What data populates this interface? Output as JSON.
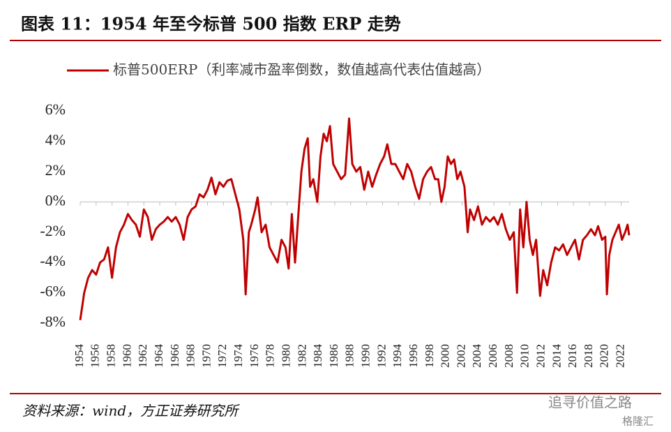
{
  "chart_data": {
    "type": "line",
    "title": "图表 11：1954 年至今标普 500 指数 ERP 走势",
    "source": "资料来源：wind，方正证券研究所",
    "watermark": "追寻价值之路",
    "watermark2": "格隆汇",
    "xlim": [
      1954,
      2023
    ],
    "xticks": [
      1954,
      1956,
      1958,
      1960,
      1962,
      1964,
      1966,
      1968,
      1970,
      1972,
      1974,
      1976,
      1978,
      1980,
      1982,
      1984,
      1986,
      1988,
      1990,
      1992,
      1994,
      1996,
      1998,
      2000,
      2002,
      2004,
      2006,
      2008,
      2010,
      2012,
      2014,
      2016,
      2018,
      2020,
      2022
    ],
    "ylim": [
      -8,
      6
    ],
    "yticks": [
      {
        "value": -8,
        "label": "-8%"
      },
      {
        "value": -6,
        "label": "-6%"
      },
      {
        "value": -4,
        "label": "-4%"
      },
      {
        "value": -2,
        "label": "-2%"
      },
      {
        "value": 0,
        "label": "0%"
      },
      {
        "value": 2,
        "label": "2%"
      },
      {
        "value": 4,
        "label": "4%"
      },
      {
        "value": 6,
        "label": "6%"
      }
    ],
    "grid": false,
    "legend": "top",
    "x": [
      1954.0,
      1954.5,
      1955,
      1955.5,
      1956,
      1956.5,
      1957,
      1957.5,
      1958,
      1958.5,
      1959,
      1959.5,
      1960,
      1960.5,
      1961,
      1961.5,
      1962,
      1962.5,
      1963,
      1963.5,
      1964,
      1964.5,
      1965,
      1965.5,
      1966,
      1966.5,
      1967,
      1967.5,
      1968,
      1968.5,
      1969,
      1969.5,
      1970,
      1970.5,
      1971,
      1971.5,
      1972,
      1972.5,
      1973,
      1973.5,
      1974,
      1974.5,
      1974.8,
      1975.2,
      1975.5,
      1976,
      1976.3,
      1976.8,
      1977.3,
      1977.8,
      1978.3,
      1978.8,
      1979.3,
      1979.8,
      1980.2,
      1980.6,
      1981,
      1981.4,
      1981.8,
      1982.2,
      1982.6,
      1982.9,
      1983.3,
      1983.8,
      1984.2,
      1984.6,
      1985,
      1985.4,
      1985.8,
      1986.3,
      1986.8,
      1987.3,
      1987.8,
      1988.2,
      1988.7,
      1989.2,
      1989.7,
      1990.2,
      1990.7,
      1991.2,
      1991.7,
      1992.2,
      1992.6,
      1993.1,
      1993.6,
      1994.1,
      1994.6,
      1995.1,
      1995.6,
      1996.1,
      1996.6,
      1997.1,
      1997.6,
      1998.1,
      1998.6,
      1999,
      1999.4,
      1999.8,
      2000.2,
      2000.6,
      2001,
      2001.4,
      2001.8,
      2002.3,
      2002.7,
      2003,
      2003.5,
      2004,
      2004.5,
      2005,
      2005.5,
      2006,
      2006.5,
      2007,
      2007.5,
      2008,
      2008.5,
      2008.9,
      2009.3,
      2009.7,
      2010.1,
      2010.5,
      2010.9,
      2011.3,
      2011.8,
      2012.2,
      2012.7,
      2013.2,
      2013.7,
      2014.2,
      2014.7,
      2015.2,
      2015.7,
      2016.2,
      2016.7,
      2017.2,
      2017.7,
      2018.2,
      2018.7,
      2019.1,
      2019.6,
      2020.0,
      2020.2,
      2020.5,
      2020.9,
      2021.3,
      2021.7,
      2022.1,
      2022.5,
      2022.8,
      2023.0
    ],
    "series": [
      {
        "name": "标普500ERP（利率减市盈率倒数，数值越高代表估值越高）",
        "color": "#c00000",
        "values": [
          -7.8,
          -6.0,
          -5.0,
          -4.5,
          -4.8,
          -4.0,
          -3.8,
          -3.0,
          -5.0,
          -3.0,
          -2.0,
          -1.5,
          -0.8,
          -1.2,
          -1.5,
          -2.3,
          -0.5,
          -1.0,
          -2.5,
          -1.8,
          -1.5,
          -1.3,
          -1.0,
          -1.3,
          -1.0,
          -1.5,
          -2.5,
          -1.0,
          -0.5,
          -0.3,
          0.5,
          0.3,
          0.8,
          1.6,
          0.5,
          1.3,
          1.0,
          1.4,
          1.5,
          0.5,
          -0.5,
          -2.5,
          -6.1,
          -2.0,
          -1.5,
          -0.5,
          0.3,
          -2.0,
          -1.5,
          -3.0,
          -3.5,
          -4.0,
          -2.5,
          -3.0,
          -4.4,
          -0.8,
          -4.0,
          -1.0,
          2.0,
          3.5,
          4.2,
          1.0,
          1.5,
          0.0,
          3.0,
          4.5,
          4.0,
          5.0,
          2.5,
          2.0,
          1.5,
          1.8,
          5.5,
          2.5,
          2.0,
          2.3,
          0.8,
          2.0,
          1.0,
          1.8,
          2.5,
          3.0,
          3.8,
          2.5,
          2.5,
          2.0,
          1.5,
          2.5,
          2.0,
          1.0,
          0.2,
          1.5,
          2.0,
          2.3,
          1.5,
          1.5,
          0.0,
          1.0,
          3.0,
          2.5,
          2.8,
          1.5,
          2.0,
          1.0,
          -2.0,
          -0.5,
          -1.2,
          -0.3,
          -1.5,
          -1.0,
          -1.3,
          -1.0,
          -1.5,
          -0.8,
          -1.8,
          -2.5,
          -2.0,
          -6.0,
          -0.5,
          -3.0,
          0.0,
          -2.5,
          -3.5,
          -2.5,
          -6.2,
          -4.5,
          -5.5,
          -4.0,
          -3.0,
          -3.2,
          -2.8,
          -3.5,
          -3.0,
          -2.5,
          -3.8,
          -2.5,
          -2.2,
          -1.8,
          -2.2,
          -1.6,
          -2.5,
          -2.3,
          -6.1,
          -3.5,
          -2.5,
          -2.0,
          -1.5,
          -2.5,
          -2.0,
          -1.5,
          -2.2
        ]
      }
    ]
  }
}
